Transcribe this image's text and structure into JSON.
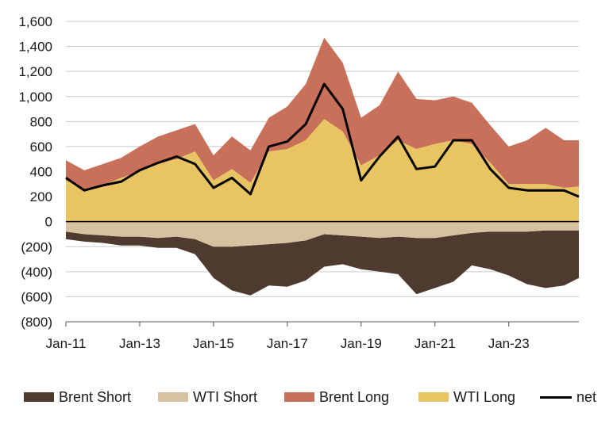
{
  "chart_data": {
    "type": "area",
    "title": "",
    "xlabel": "",
    "ylabel": "",
    "ylim": [
      -800,
      1600
    ],
    "xlim": [
      2011.0,
      2024.9
    ],
    "y_ticks": [
      {
        "value": 1600,
        "label": "1,600"
      },
      {
        "value": 1400,
        "label": "1,400"
      },
      {
        "value": 1200,
        "label": "1,200"
      },
      {
        "value": 1000,
        "label": "1,000"
      },
      {
        "value": 800,
        "label": "800"
      },
      {
        "value": 600,
        "label": "600"
      },
      {
        "value": 400,
        "label": "400"
      },
      {
        "value": 200,
        "label": "200"
      },
      {
        "value": 0,
        "label": "0"
      },
      {
        "value": -200,
        "label": "(200)"
      },
      {
        "value": -400,
        "label": "(400)"
      },
      {
        "value": -600,
        "label": "(600)"
      },
      {
        "value": -800,
        "label": "(800)"
      }
    ],
    "x_ticks": [
      {
        "value": 2011,
        "label": "Jan-11"
      },
      {
        "value": 2013,
        "label": "Jan-13"
      },
      {
        "value": 2015,
        "label": "Jan-15"
      },
      {
        "value": 2017,
        "label": "Jan-17"
      },
      {
        "value": 2019,
        "label": "Jan-19"
      },
      {
        "value": 2021,
        "label": "Jan-21"
      },
      {
        "value": 2023,
        "label": "Jan-23"
      }
    ],
    "x": [
      2011.0,
      2011.5,
      2012.0,
      2012.5,
      2013.0,
      2013.5,
      2014.0,
      2014.5,
      2015.0,
      2015.5,
      2016.0,
      2016.5,
      2017.0,
      2017.5,
      2018.0,
      2018.5,
      2019.0,
      2019.5,
      2020.0,
      2020.5,
      2021.0,
      2021.5,
      2022.0,
      2022.5,
      2023.0,
      2023.5,
      2024.0,
      2024.5,
      2024.9
    ],
    "series": [
      {
        "name": "WTI Long",
        "color": "#e8c463",
        "values": [
          330,
          260,
          290,
          350,
          400,
          460,
          500,
          560,
          330,
          420,
          310,
          560,
          580,
          650,
          820,
          720,
          450,
          530,
          650,
          580,
          620,
          650,
          620,
          470,
          300,
          300,
          300,
          270,
          280
        ]
      },
      {
        "name": "Brent Long",
        "color": "#c8705a",
        "values": [
          160,
          150,
          170,
          160,
          200,
          220,
          230,
          220,
          200,
          260,
          260,
          270,
          340,
          450,
          650,
          550,
          380,
          400,
          550,
          400,
          350,
          350,
          330,
          300,
          300,
          350,
          450,
          380,
          370
        ]
      },
      {
        "name": "WTI Short",
        "color": "#d6c2a0",
        "values": [
          -80,
          -100,
          -110,
          -120,
          -120,
          -130,
          -120,
          -140,
          -200,
          -200,
          -190,
          -180,
          -170,
          -150,
          -100,
          -110,
          -120,
          -130,
          -120,
          -130,
          -130,
          -110,
          -90,
          -80,
          -80,
          -80,
          -70,
          -70,
          -70
        ]
      },
      {
        "name": "Brent Short",
        "color": "#4e3a2e",
        "values": [
          -60,
          -60,
          -60,
          -70,
          -70,
          -80,
          -90,
          -120,
          -250,
          -350,
          -400,
          -330,
          -350,
          -320,
          -260,
          -230,
          -260,
          -270,
          -300,
          -450,
          -400,
          -370,
          -260,
          -300,
          -350,
          -420,
          -460,
          -440,
          -380
        ]
      },
      {
        "name": "net",
        "color": "#000000",
        "values": [
          350,
          250,
          290,
          320,
          410,
          470,
          520,
          460,
          270,
          350,
          220,
          600,
          640,
          780,
          1100,
          900,
          330,
          520,
          680,
          420,
          440,
          650,
          650,
          420,
          270,
          250,
          250,
          250,
          200
        ]
      }
    ]
  },
  "legend": [
    {
      "label": "Brent Short",
      "color": "#4e3a2e",
      "kind": "box"
    },
    {
      "label": "WTI Short",
      "color": "#d6c2a0",
      "kind": "box"
    },
    {
      "label": "Brent Long",
      "color": "#c8705a",
      "kind": "box"
    },
    {
      "label": "WTI Long",
      "color": "#e8c463",
      "kind": "box"
    },
    {
      "label": "net",
      "color": "#000000",
      "kind": "line"
    }
  ]
}
